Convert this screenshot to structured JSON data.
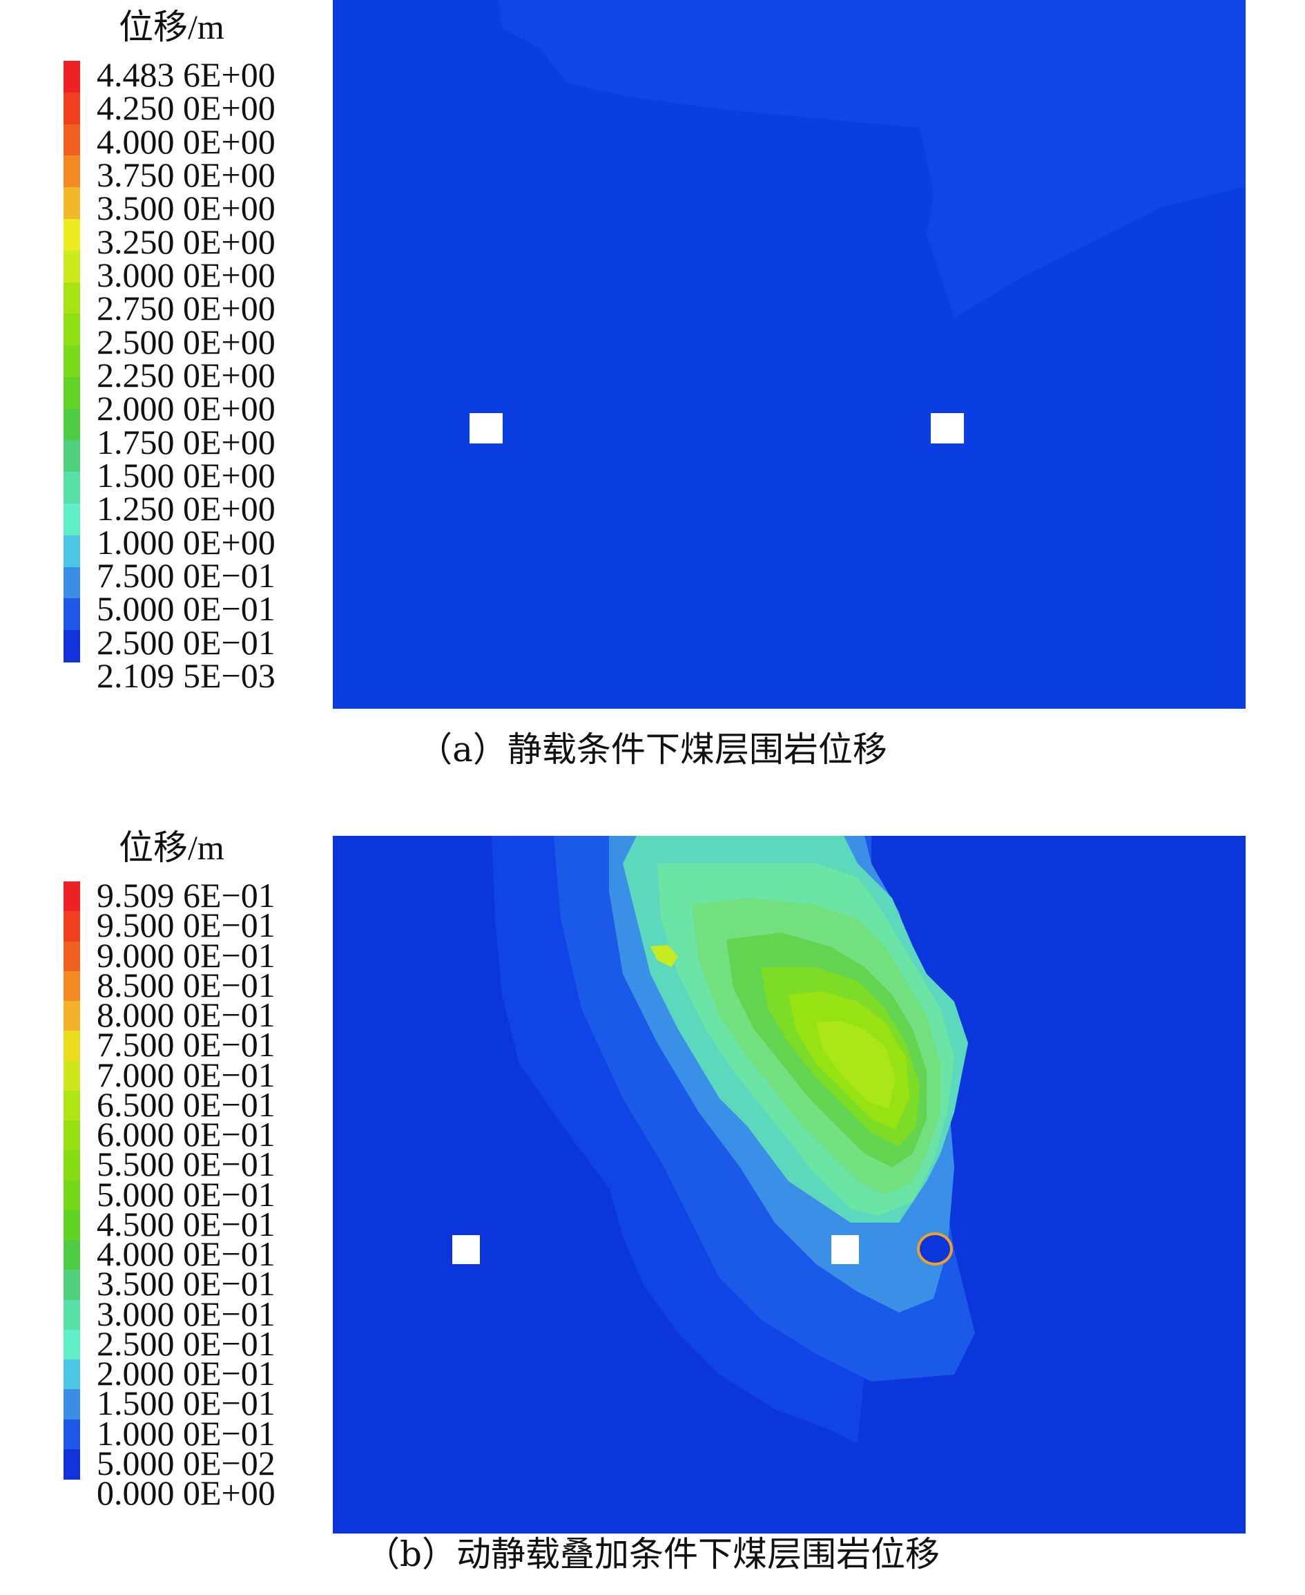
{
  "figure": {
    "panel_a": {
      "legend_title": "位移/m",
      "legend_ticks": [
        "4.483 6E+00",
        "4.250 0E+00",
        "4.000 0E+00",
        "3.750 0E+00",
        "3.500 0E+00",
        "3.250 0E+00",
        "3.000 0E+00",
        "2.750 0E+00",
        "2.500 0E+00",
        "2.250 0E+00",
        "2.000 0E+00",
        "1.750 0E+00",
        "1.500 0E+00",
        "1.250 0E+00",
        "1.000 0E+00",
        "7.500 0E−01",
        "5.000 0E−01",
        "2.500 0E−01",
        "2.109 5E−03"
      ],
      "legend_colors": [
        "#ee2222",
        "#f04020",
        "#f06020",
        "#f48a24",
        "#f2b82a",
        "#ecea20",
        "#ccea1c",
        "#a8e414",
        "#8ee014",
        "#7cda1c",
        "#62d428",
        "#4ecc44",
        "#4ed07c",
        "#58e0a8",
        "#62eec6",
        "#4ec6e6",
        "#3a8ee6",
        "#1e58e6",
        "#1232dc"
      ],
      "caption": "（a）静载条件下煤层围岩位移"
    },
    "panel_b": {
      "legend_title": "位移/m",
      "legend_ticks": [
        "9.509 6E−01",
        "9.500 0E−01",
        "9.000 0E−01",
        "8.500 0E−01",
        "8.000 0E−01",
        "7.500 0E−01",
        "7.000 0E−01",
        "6.500 0E−01",
        "6.000 0E−01",
        "5.500 0E−01",
        "5.000 0E−01",
        "4.500 0E−01",
        "4.000 0E−01",
        "3.500 0E−01",
        "3.000 0E−01",
        "2.500 0E−01",
        "2.000 0E−01",
        "1.500 0E−01",
        "1.000 0E−01",
        "5.000 0E−02",
        "0.000 0E+00"
      ],
      "legend_colors": [
        "#ee2222",
        "#f04020",
        "#f06020",
        "#f48a24",
        "#f4b02a",
        "#ecdc20",
        "#cce81c",
        "#b0e414",
        "#98e012",
        "#86dc12",
        "#74d818",
        "#5ed424",
        "#4ecc44",
        "#4ed07c",
        "#58e0a8",
        "#62eec6",
        "#4ec6e6",
        "#3a8ee6",
        "#1e58e6",
        "#1232dc"
      ],
      "caption": "（b）动静载叠加条件下煤层围岩位移"
    }
  }
}
